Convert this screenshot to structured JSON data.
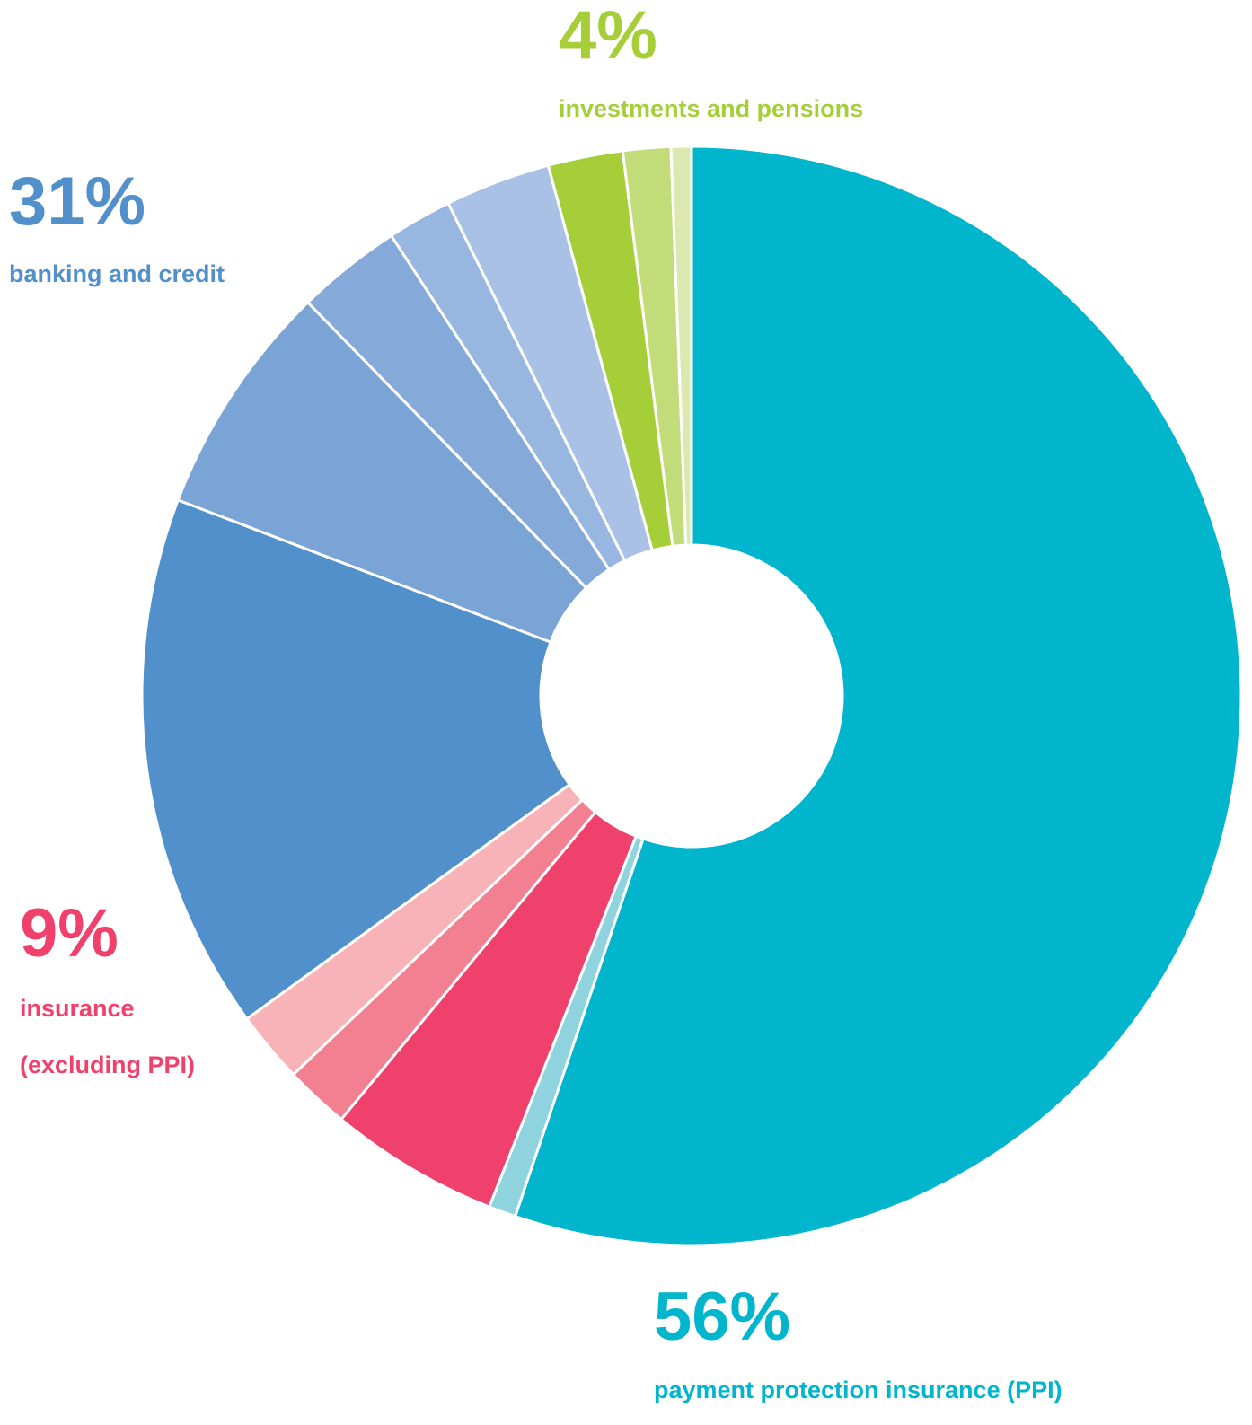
{
  "chart_data": {
    "type": "donut",
    "series": [
      {
        "name": "payment protection insurance (PPI)",
        "value": 56,
        "value_label": "56%",
        "color": "#00b5cc",
        "values": [
          55.2,
          0.8
        ],
        "colors": [
          "#00b5cc",
          "#8fd3df"
        ]
      },
      {
        "name": [
          "insurance",
          "(excluding PPI)"
        ],
        "value": 9,
        "value_label": "9%",
        "color": "#ef416b",
        "values": [
          5.0,
          1.9,
          2.1
        ],
        "colors": [
          "#ef416b",
          "#f28090",
          "#f8b3b9"
        ]
      },
      {
        "name": "banking and credit",
        "value": 31,
        "value_label": "31%",
        "color": "#5190cb",
        "values": [
          15.8,
          6.9,
          3.1,
          1.9,
          3.1
        ],
        "colors": [
          "#5190cb",
          "#79a4d5",
          "#85aad9",
          "#97b7e0",
          "#a9c1e4"
        ]
      },
      {
        "name": "investments and pensions",
        "value": 4,
        "value_label": "4%",
        "color": "#a6ce39",
        "values": [
          2.2,
          1.4,
          0.6
        ],
        "colors": [
          "#a6ce39",
          "#c2dc7a",
          "#dbe9b0"
        ]
      }
    ]
  }
}
